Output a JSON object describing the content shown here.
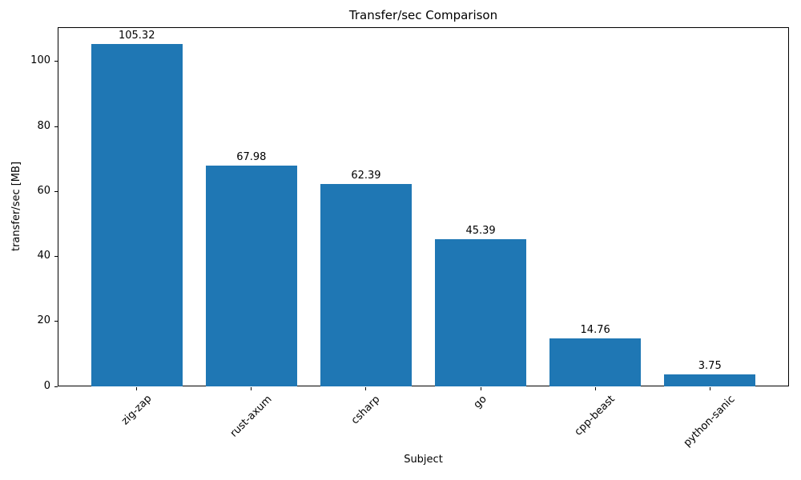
{
  "chart_data": {
    "type": "bar",
    "title": "Transfer/sec Comparison",
    "xlabel": "Subject",
    "ylabel": "transfer/sec [MB]",
    "categories": [
      "zig-zap",
      "rust-axum",
      "csharp",
      "go",
      "cpp-beast",
      "python-sanic"
    ],
    "values": [
      105.32,
      67.98,
      62.39,
      45.39,
      14.76,
      3.75
    ],
    "value_labels": [
      "105.32",
      "67.98",
      "62.39",
      "45.39",
      "14.76",
      "3.75"
    ],
    "yticks": [
      0,
      20,
      40,
      60,
      80,
      100
    ],
    "ylim": [
      0,
      110.586
    ],
    "xlim": [
      -0.69,
      5.69
    ],
    "x_tick_rotation_deg": 45,
    "grid": false,
    "legend": false,
    "bar_color": "#1f77b4",
    "text_color": "#000000",
    "background_color": "#ffffff"
  }
}
